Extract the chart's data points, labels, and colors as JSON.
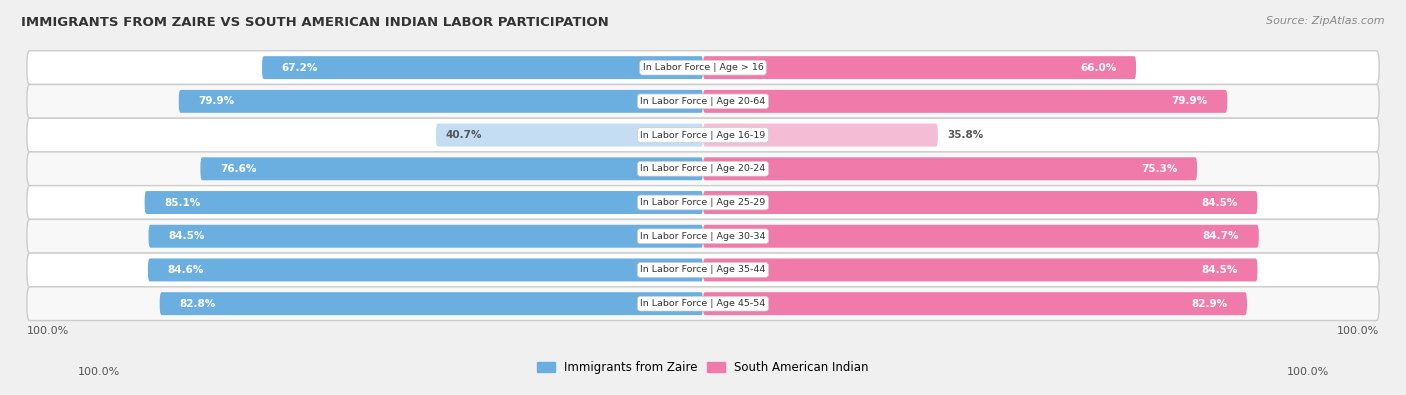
{
  "title": "IMMIGRANTS FROM ZAIRE VS SOUTH AMERICAN INDIAN LABOR PARTICIPATION",
  "source": "Source: ZipAtlas.com",
  "categories": [
    "In Labor Force | Age > 16",
    "In Labor Force | Age 20-64",
    "In Labor Force | Age 16-19",
    "In Labor Force | Age 20-24",
    "In Labor Force | Age 25-29",
    "In Labor Force | Age 30-34",
    "In Labor Force | Age 35-44",
    "In Labor Force | Age 45-54"
  ],
  "zaire_values": [
    67.2,
    79.9,
    40.7,
    76.6,
    85.1,
    84.5,
    84.6,
    82.8
  ],
  "indian_values": [
    66.0,
    79.9,
    35.8,
    75.3,
    84.5,
    84.7,
    84.5,
    82.9
  ],
  "zaire_color": "#6aafe0",
  "zaire_color_light": "#c5ddf2",
  "indian_color": "#f07aaa",
  "indian_color_light": "#f5bcd5",
  "label_color_white": "#ffffff",
  "label_color_dark": "#555555",
  "background_color": "#f0f0f0",
  "row_bg_even": "#ffffff",
  "row_bg_odd": "#f8f8f8",
  "max_value": 100.0,
  "legend_zaire": "Immigrants from Zaire",
  "legend_indian": "South American Indian",
  "light_threshold": 50.0
}
